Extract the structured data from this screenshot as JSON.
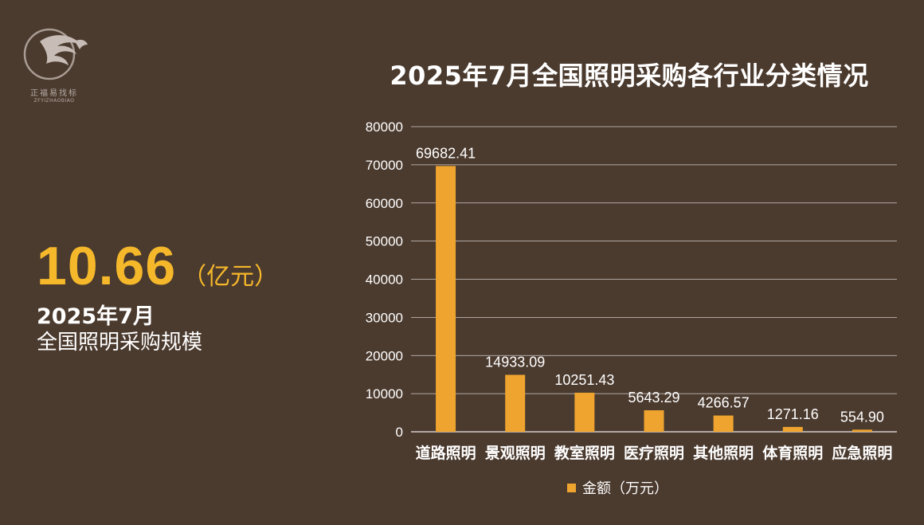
{
  "logo": {
    "name_cn": "正福易找标",
    "name_en": "ZFYIZHAOBIAO"
  },
  "kpi": {
    "value": "10.66",
    "unit": "（亿元）",
    "line1": "2025年7月",
    "line2": "全国照明采购规模"
  },
  "colors": {
    "background": "#4b3a2e",
    "bar": "#efa42f",
    "kpi": "#f5b82b",
    "text": "#ffffff"
  },
  "chart_data": {
    "type": "bar",
    "title": "2025年7月全国照明采购各行业分类情况",
    "categories": [
      "道路照明",
      "景观照明",
      "教室照明",
      "医疗照明",
      "其他照明",
      "体育照明",
      "应急照明"
    ],
    "series": [
      {
        "name": "金额（万元）",
        "values": [
          69682.41,
          14933.09,
          10251.43,
          5643.29,
          4266.57,
          1271.16,
          554.9
        ],
        "labels": [
          "69682.41",
          "14933.09",
          "10251.43",
          "5643.29",
          "4266.57",
          "1271.16",
          "554.90"
        ]
      }
    ],
    "ylim": [
      0,
      80000
    ],
    "yticks": [
      "0",
      "10000",
      "20000",
      "30000",
      "40000",
      "50000",
      "60000",
      "70000",
      "80000"
    ],
    "xlabel": "",
    "ylabel": "",
    "grid": true,
    "legend": "bottom"
  }
}
